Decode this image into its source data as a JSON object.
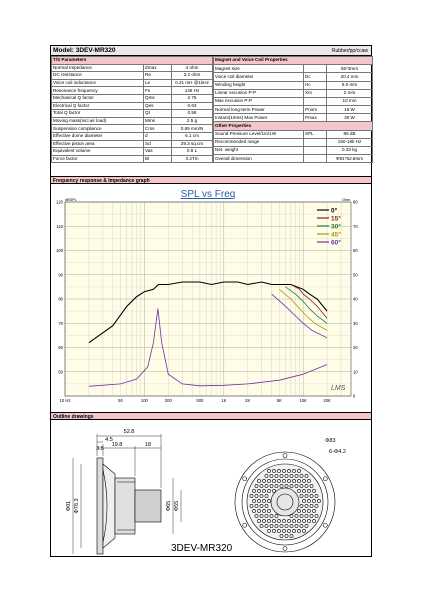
{
  "header": {
    "model": "Model: 3DEV-MR320",
    "material": "Rubber/pp/ccaw"
  },
  "sections": {
    "ts": "T/S Parameters",
    "magnet": "Magnet and Voice Coil Properties",
    "other": "Other Properties",
    "freq": "Frequency response & Impedance graph",
    "outline": "Outline drawings"
  },
  "left_params": [
    [
      "Normal Impedance",
      "Zmax",
      "4 ohm"
    ],
    [
      "DC resistance",
      "Re",
      "3.2 ohm"
    ],
    [
      "Voice coil inductance",
      "Le",
      "0.21 mH @1kHz"
    ],
    [
      "Resonance frequency",
      "Fs",
      "148 Hz"
    ],
    [
      "Mechanical Q factor",
      "Qms",
      "2.75"
    ],
    [
      "Electrical Q factor",
      "Qes",
      "0.63"
    ],
    [
      "Total Q factor",
      "Qt",
      "0.58"
    ],
    [
      "Moving mass(incl.air load)",
      "Mms",
      "2.5 g"
    ],
    [
      "Suspension compliance",
      "Cms",
      "0.69 mm/N"
    ],
    [
      "Effective dome diameter",
      "d",
      "6.1 cm"
    ],
    [
      "Effective piston area",
      "Sd",
      "29.3 sq.cm"
    ],
    [
      "Equivalent volume",
      "Vas",
      "0.8 L"
    ],
    [
      "Force factor",
      "Bl",
      "3.2Tm"
    ]
  ],
  "right_params": [
    [
      "Magnet size",
      "",
      "55*3mm"
    ],
    [
      "Voice coil diameter",
      "Dc",
      "20.4 mm"
    ],
    [
      "Winding height",
      "Hc",
      "6.0 mm"
    ],
    [
      "Linear excusion P-P",
      "Xm",
      "2 mm"
    ],
    [
      "Max excusion P-P",
      "",
      "10 mm"
    ],
    [
      "Normal long-term Power",
      "Pnom",
      "15 W"
    ],
    [
      "Instant(10ms) Max Power",
      "Pmax",
      "30 W"
    ],
    [
      "Suspension compliance_other",
      "",
      ""
    ],
    [
      "Sound Pressure Level/1m/1W",
      "SPL",
      "86 dB"
    ],
    [
      "Recommended range",
      "",
      "150-18k Hz"
    ],
    [
      "Net. weight",
      "",
      "0.33 kg"
    ],
    [
      "Overall dimension",
      "",
      "Φ91*52.8mm"
    ]
  ],
  "chart_data": {
    "type": "line",
    "title": "SPL vs Freq",
    "ylabel_left": "dBSPL",
    "ylabel_right": "Ohm",
    "xscale": "log",
    "xlim": [
      10,
      40000
    ],
    "ylim_left": [
      40,
      120
    ],
    "ylim_right": [
      0,
      80
    ],
    "x_ticks": [
      "10 Hz",
      "50",
      "100",
      "200",
      "500",
      "1K",
      "2K",
      "5K",
      "10K",
      "20K"
    ],
    "y_ticks_left": [
      "120",
      "110",
      "100",
      "90",
      "80",
      "70",
      "60",
      "50"
    ],
    "y_ticks_right": [
      "80",
      "70",
      "60",
      "50",
      "40",
      "30",
      "20",
      "10",
      "0"
    ],
    "legend": [
      "0°",
      "15°",
      "30°",
      "45°",
      "60°"
    ],
    "watermark": "LMS",
    "series": [
      {
        "name": "0°",
        "color": "#000000",
        "x": [
          20,
          40,
          60,
          80,
          100,
          130,
          150,
          200,
          300,
          500,
          700,
          1000,
          1500,
          2000,
          3000,
          4000,
          5000,
          7000,
          10000,
          12000,
          15000,
          20000
        ],
        "y": [
          62,
          69,
          77,
          81,
          83,
          84,
          86,
          86,
          87,
          87,
          86,
          87,
          87,
          86,
          87,
          86,
          86,
          86,
          84,
          82,
          80,
          75
        ]
      },
      {
        "name": "15°",
        "color": "#8b1a1a",
        "x": [
          7000,
          9000,
          10000,
          12000,
          15000,
          20000
        ],
        "y": [
          86,
          84,
          82,
          80,
          77,
          72
        ]
      },
      {
        "name": "30°",
        "color": "#1e7b2c",
        "x": [
          6000,
          8000,
          10000,
          12000,
          15000,
          20000
        ],
        "y": [
          85,
          82,
          79,
          76,
          73,
          70
        ]
      },
      {
        "name": "45°",
        "color": "#a89a00",
        "x": [
          5000,
          7000,
          9000,
          11000,
          14000,
          20000
        ],
        "y": [
          84,
          80,
          76,
          73,
          70,
          67
        ]
      },
      {
        "name": "60°",
        "color": "#7030a0",
        "x": [
          4000,
          6000,
          8000,
          10000,
          13000,
          20000
        ],
        "y": [
          82,
          77,
          73,
          70,
          67,
          64
        ]
      },
      {
        "name": "Impedance",
        "color": "#7030a0",
        "axis": "right",
        "x": [
          20,
          50,
          80,
          110,
          130,
          148,
          165,
          200,
          300,
          500,
          1000,
          2000,
          5000,
          10000,
          20000
        ],
        "y": [
          4,
          5,
          7,
          12,
          22,
          36,
          22,
          9,
          5,
          4.2,
          4.4,
          5,
          6.5,
          9,
          13
        ]
      }
    ]
  },
  "outline": {
    "dims_side": [
      "52.8",
      "4.5",
      "3.5",
      "19.8",
      "18"
    ],
    "dims_vertical": [
      "Φ91",
      "Φ78.3",
      "Φ65",
      "Φ55"
    ],
    "dims_front": [
      "Φ83",
      "6-Φ4.2"
    ],
    "caption": "3DEV-MR320"
  }
}
